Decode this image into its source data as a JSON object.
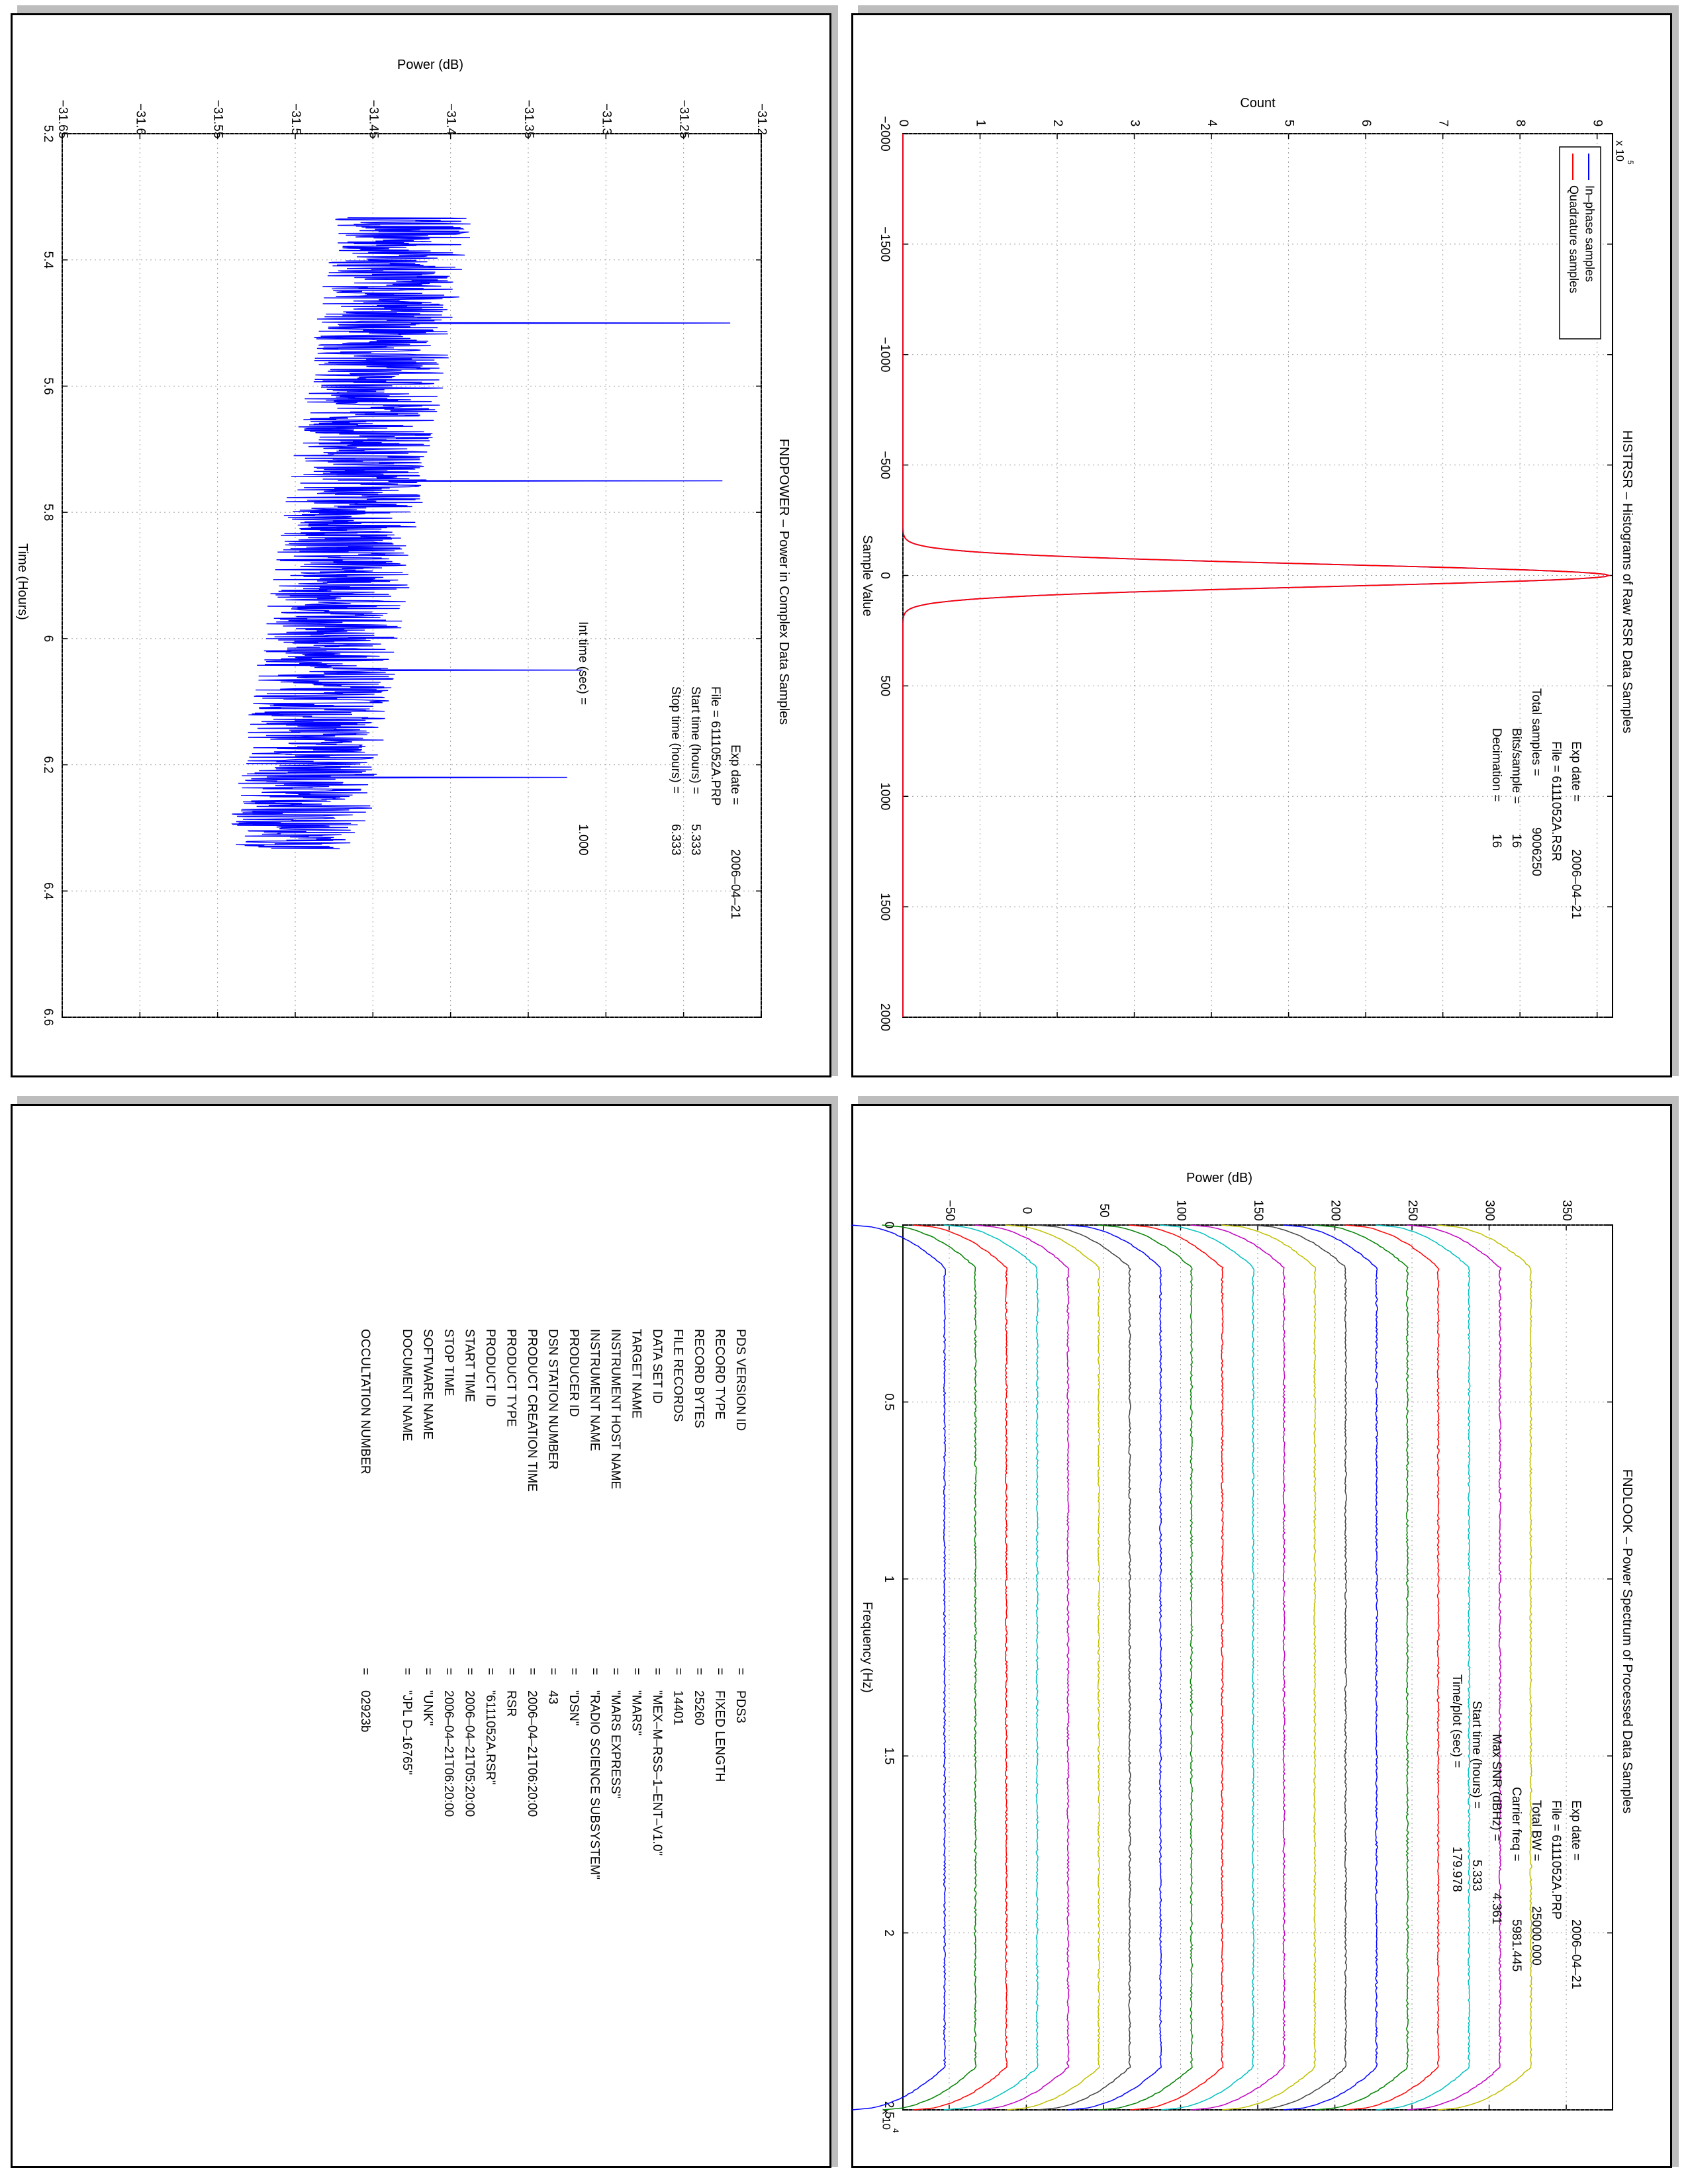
{
  "chart_data": [
    {
      "id": "fndpower",
      "type": "line",
      "title": "FNDPOWER – Power in Complex Data Samples",
      "xlabel": "Time (Hours)",
      "ylabel": "Power (dB)",
      "xlim": [
        5.2,
        6.6
      ],
      "ylim": [
        -31.65,
        -31.2
      ],
      "x_ticks": [
        "5.2",
        "5.4",
        "5.6",
        "5.8",
        "6",
        "6.2",
        "6.4",
        "6.6"
      ],
      "y_ticks": [
        "−31.65",
        "−31.6",
        "−31.55",
        "−31.5",
        "−31.45",
        "−31.4",
        "−31.35",
        "−31.3",
        "−31.25",
        "−31.2"
      ],
      "grid": true,
      "series": [
        {
          "color": "#0000ff",
          "x_range": [
            5.333,
            6.333
          ],
          "start_mean": -31.43,
          "end_mean": -31.5,
          "noise_halfwidth": 0.045,
          "spikes": [
            {
              "x": 5.5,
              "y": -31.22
            },
            {
              "x": 5.75,
              "y": -31.225
            },
            {
              "x": 6.05,
              "y": -31.315
            },
            {
              "x": 6.22,
              "y": -31.325
            }
          ]
        }
      ],
      "annotations": [
        {
          "label": "Exp date =",
          "value": "2006–04–21"
        },
        {
          "label": "File = 6111052A.PRP",
          "value": ""
        },
        {
          "label": "Start time (hours) =",
          "value": "5.333"
        },
        {
          "label": "Stop time (hours) =",
          "value": "6.333"
        },
        {
          "label": "Int time (sec) =",
          "value": "1.000"
        }
      ]
    },
    {
      "id": "histrsr",
      "type": "line",
      "title": "HISTRSR – Histograms of Raw RSR Data Samples",
      "xlabel": "Sample Value",
      "ylabel": "Count",
      "xlim": [
        -2000,
        2000
      ],
      "ylim": [
        0,
        9.2
      ],
      "y_multiplier": "x 10",
      "y_exponent": "5",
      "x_ticks": [
        "−2000",
        "−1500",
        "−1000",
        "−500",
        "0",
        "500",
        "1000",
        "1500",
        "2000"
      ],
      "y_ticks": [
        "0",
        "1",
        "2",
        "3",
        "4",
        "5",
        "6",
        "7",
        "8",
        "9"
      ],
      "grid": true,
      "legend_position": "top-right",
      "series": [
        {
          "name": "In–phase samples",
          "color": "#0000ff",
          "peak": 9.15,
          "width": 50
        },
        {
          "name": "Quadrature samples",
          "color": "#ff0000",
          "peak": 9.15,
          "width": 50
        }
      ],
      "annotations": [
        {
          "label": "Exp date =",
          "value": "2006–04–21"
        },
        {
          "label": "File = 6111052A.RSR",
          "value": ""
        },
        {
          "label": "Total samples =",
          "value": "9006250"
        },
        {
          "label": "Bits/sample =",
          "value": "16"
        },
        {
          "label": "Decimation =",
          "value": "16"
        }
      ]
    },
    {
      "id": "fndlook",
      "type": "line",
      "title": "FNDLOOK – Power Spectrum of Processed Data Samples",
      "xlabel": "Frequency (Hz)",
      "ylabel": "Power (dB)",
      "xlim": [
        0,
        2.5
      ],
      "ylim": [
        -80,
        380
      ],
      "x_multiplier": "x 10",
      "x_exponent": "4",
      "x_ticks": [
        "0",
        "0.5",
        "1",
        "1.5",
        "2",
        "2.5"
      ],
      "y_ticks": [
        "−50",
        "0",
        "50",
        "100",
        "150",
        "200",
        "250",
        "300",
        "350"
      ],
      "grid": true,
      "series": [
        {
          "level": -53,
          "color": "#0000ff"
        },
        {
          "level": -33,
          "color": "#008000"
        },
        {
          "level": -13,
          "color": "#ff0000"
        },
        {
          "level": 7,
          "color": "#00bfbf"
        },
        {
          "level": 27,
          "color": "#bf00bf"
        },
        {
          "level": 47,
          "color": "#bfbf00"
        },
        {
          "level": 67,
          "color": "#404040"
        },
        {
          "level": 87,
          "color": "#0000ff"
        },
        {
          "level": 107,
          "color": "#008000"
        },
        {
          "level": 127,
          "color": "#ff0000"
        },
        {
          "level": 147,
          "color": "#00bfbf"
        },
        {
          "level": 167,
          "color": "#bf00bf"
        },
        {
          "level": 187,
          "color": "#bfbf00"
        },
        {
          "level": 207,
          "color": "#404040"
        },
        {
          "level": 227,
          "color": "#0000ff"
        },
        {
          "level": 247,
          "color": "#008000"
        },
        {
          "level": 267,
          "color": "#ff0000"
        },
        {
          "level": 287,
          "color": "#00bfbf"
        },
        {
          "level": 307,
          "color": "#bf00bf"
        },
        {
          "level": 327,
          "color": "#bfbf00"
        }
      ],
      "annotations": [
        {
          "label": "Exp date =",
          "value": "2006–04–21"
        },
        {
          "label": "File = 6111052A.PRP",
          "value": ""
        },
        {
          "label": "Total BW =",
          "value": "25000.000"
        },
        {
          "label": "Carrier freq =",
          "value": "5981.445"
        },
        {
          "label": "Max SNR (dBHz) =",
          "value": "4.361"
        },
        {
          "label": "Start time (hours) =",
          "value": "5.333"
        },
        {
          "label": "Time/plot (sec) =",
          "value": "179.978"
        }
      ]
    }
  ],
  "label_table": {
    "rows": [
      {
        "label": "PDS VERSION ID",
        "value": "PDS3"
      },
      {
        "label": "RECORD TYPE",
        "value": "FIXED LENGTH"
      },
      {
        "label": "RECORD BYTES",
        "value": "25260"
      },
      {
        "label": "FILE RECORDS",
        "value": "14401"
      },
      {
        "label": "DATA SET ID",
        "value": "\"MEX–M–RSS–1–ENT–V1.0\""
      },
      {
        "label": "TARGET NAME",
        "value": "\"MARS\""
      },
      {
        "label": "INSTRUMENT HOST NAME",
        "value": "\"MARS EXPRESS\""
      },
      {
        "label": "INSTRUMENT NAME",
        "value": "\"RADIO SCIENCE SUBSYSTEM\""
      },
      {
        "label": "PRODUCER ID",
        "value": "\"DSN\""
      },
      {
        "label": "DSN STATION NUMBER",
        "value": "43"
      },
      {
        "label": "PRODUCT CREATION TIME",
        "value": "2006–04–21T06:20:00"
      },
      {
        "label": "PRODUCT TYPE",
        "value": "RSR"
      },
      {
        "label": "PRODUCT ID",
        "value": "\"6111052A.RSR\""
      },
      {
        "label": "START TIME",
        "value": "2006–04–21T05:20:00"
      },
      {
        "label": "STOP TIME",
        "value": "2006–04–21T06:20:00"
      },
      {
        "label": "SOFTWARE NAME",
        "value": "\"UNK\""
      },
      {
        "label": "DOCUMENT NAME",
        "value": "\"JPL D–16765\""
      },
      {
        "label": "",
        "value": ""
      },
      {
        "label": "OCCULTATION NUMBER",
        "value": "02923b"
      }
    ]
  }
}
